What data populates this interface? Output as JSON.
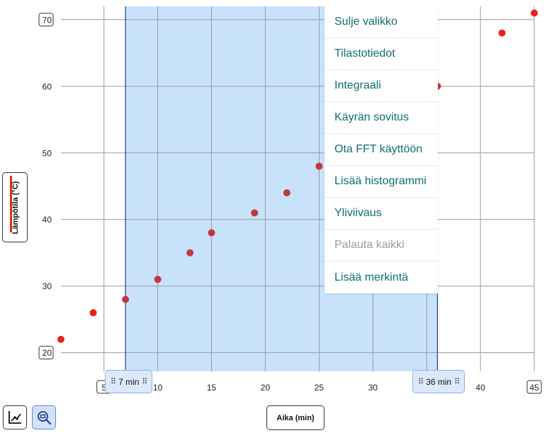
{
  "chart_data": {
    "type": "scatter",
    "xlabel": "Aika (min)",
    "ylabel": "Lämpötila (°C)",
    "xlim": [
      0.5,
      45.5
    ],
    "ylim": [
      17.2,
      72
    ],
    "x_ticks": [
      {
        "value": 5,
        "label": "5"
      },
      {
        "value": 10,
        "label": "10"
      },
      {
        "value": 15,
        "label": "15"
      },
      {
        "value": 20,
        "label": "20"
      },
      {
        "value": 25,
        "label": "25"
      },
      {
        "value": 30,
        "label": "30"
      },
      {
        "value": 35,
        "label": "35"
      },
      {
        "value": 40,
        "label": "40"
      },
      {
        "value": 45,
        "label": "45"
      }
    ],
    "y_ticks": [
      {
        "value": 20,
        "label": "20"
      },
      {
        "value": 30,
        "label": "30"
      },
      {
        "value": 40,
        "label": "40"
      },
      {
        "value": 50,
        "label": "50"
      },
      {
        "value": 60,
        "label": "60"
      },
      {
        "value": 70,
        "label": "70"
      }
    ],
    "boxed_ticks": {
      "x": [
        "5",
        "45"
      ],
      "y": [
        "20",
        "70"
      ]
    },
    "grid": true,
    "series": [
      {
        "color": "#e8231a",
        "points": [
          {
            "x": 1,
            "y": 22
          },
          {
            "x": 4,
            "y": 26
          },
          {
            "x": 7,
            "y": 28
          },
          {
            "x": 10,
            "y": 31
          },
          {
            "x": 13,
            "y": 35
          },
          {
            "x": 15,
            "y": 38
          },
          {
            "x": 19,
            "y": 41
          },
          {
            "x": 22,
            "y": 44
          },
          {
            "x": 25,
            "y": 48
          },
          {
            "x": 36,
            "y": 60
          },
          {
            "x": 42,
            "y": 68
          },
          {
            "x": 45,
            "y": 71
          }
        ]
      }
    ],
    "selection": {
      "start": 7,
      "end": 36,
      "fill": "#c9e2fb",
      "line_color": "#1a3f8f",
      "inside_point_color": "#c0393b"
    }
  },
  "range_handles": {
    "start": {
      "grip": "⠿",
      "label": "7 min"
    },
    "end": {
      "grip": "⠿",
      "label": "36 min"
    }
  },
  "y_axis_button": {
    "label": "Lämpötila (°C)",
    "color": "#dd3311"
  },
  "x_axis_button": {
    "label": "Aika (min)"
  },
  "toolbar": {
    "graph_icon": "graph-axes-icon",
    "zoom_icon": "zoom-select-icon"
  },
  "menu": {
    "items": [
      {
        "label": "Sulje valikko",
        "enabled": true
      },
      {
        "label": "Tilastotiedot",
        "enabled": true
      },
      {
        "label": "Integraali",
        "enabled": true
      },
      {
        "label": "Käyrän sovitus",
        "enabled": true
      },
      {
        "label": "Ota FFT käyttöön",
        "enabled": true
      },
      {
        "label": "Lisää histogrammi",
        "enabled": true
      },
      {
        "label": "Yliviivaus",
        "enabled": true
      },
      {
        "label": "Palauta kaikki",
        "enabled": false
      },
      {
        "label": "Lisää merkintä",
        "enabled": true
      }
    ]
  }
}
